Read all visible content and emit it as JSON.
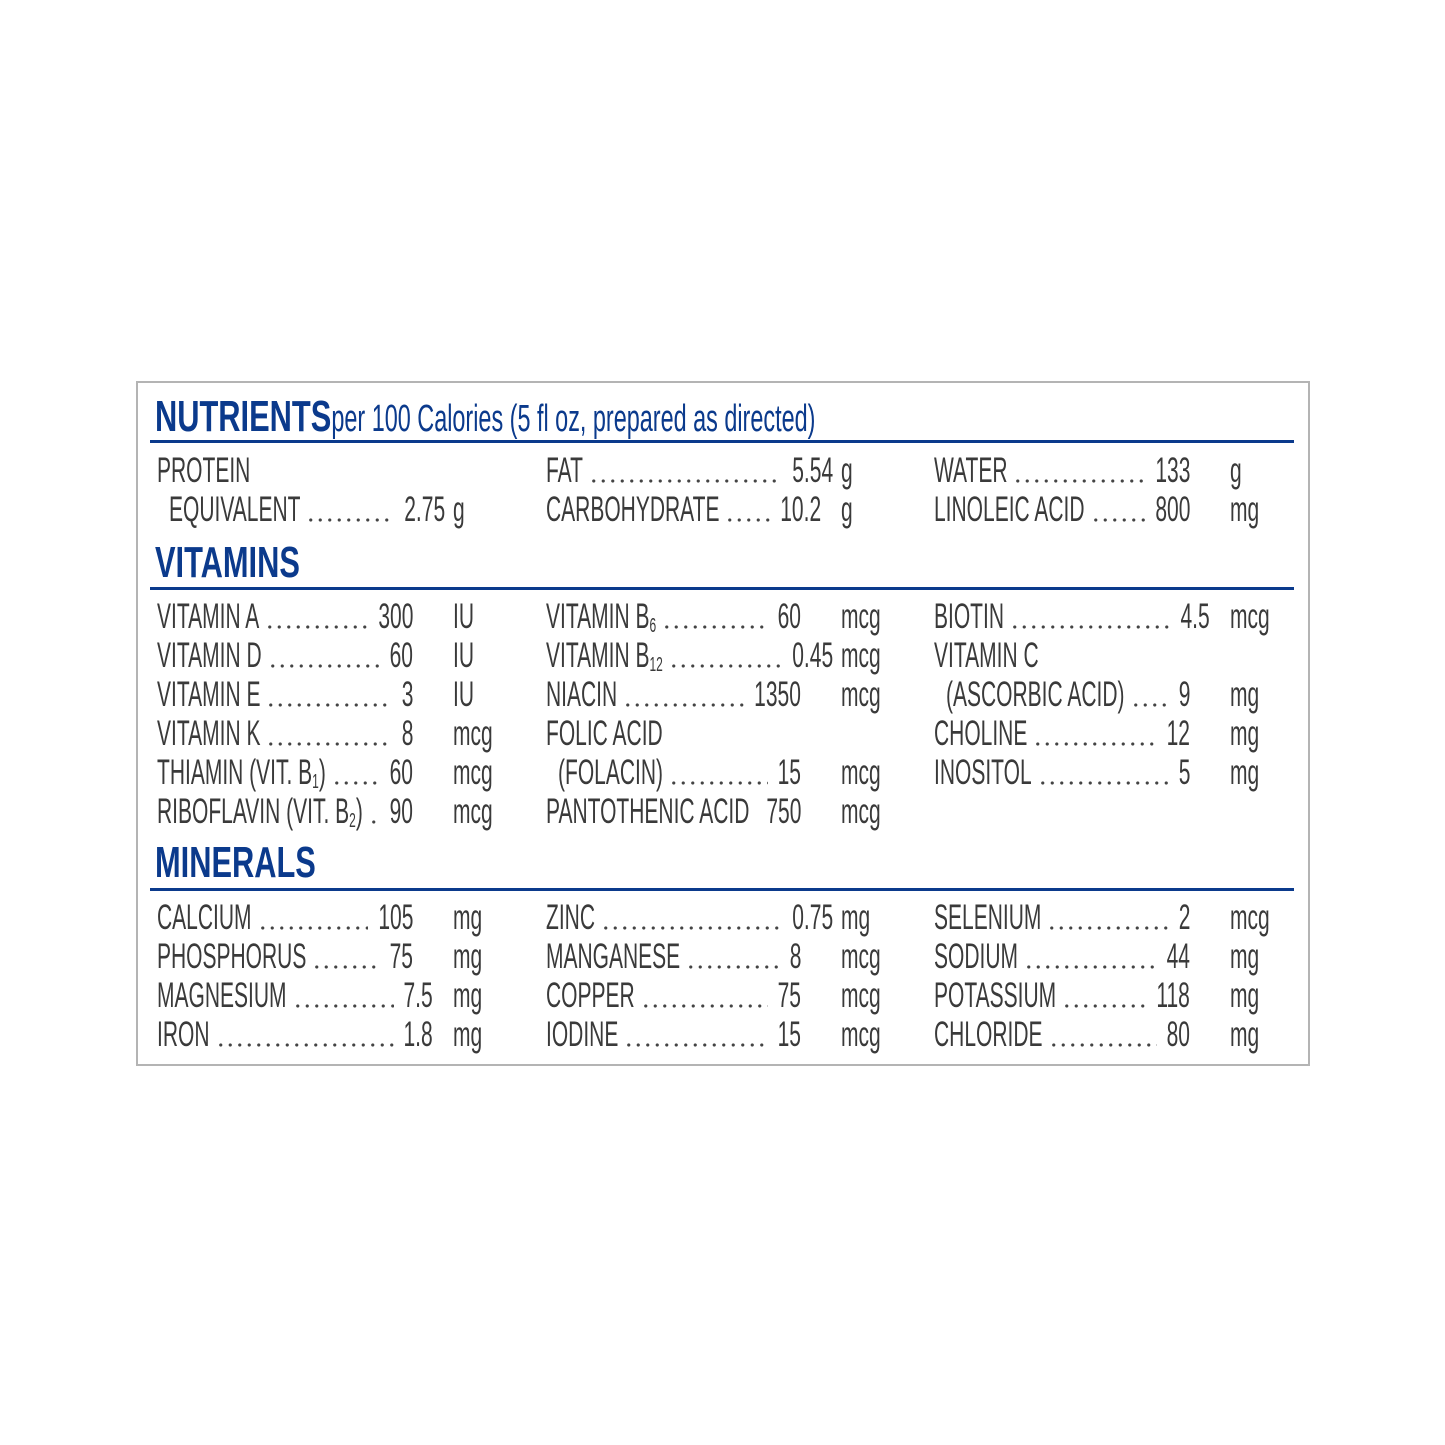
{
  "colors": {
    "accent": "#0b3a8c",
    "text": "#3a3a3a",
    "border": "#b4b4b4"
  },
  "title": {
    "main": "NUTRIENTS",
    "rest": " per 100 Calories (5 fl oz, prepared as directed)"
  },
  "sections": [
    {
      "key": "nutrients",
      "heading": "",
      "columns": [
        [
          {
            "label": "PROTEIN"
          },
          {
            "label": "EQUIVALENT",
            "indent": true,
            "value": "2.75",
            "unit": "g"
          }
        ],
        [
          {
            "label": "FAT",
            "value": "5.54",
            "unit": "g"
          },
          {
            "label": "CARBOHYDRATE",
            "value": "10.2",
            "unit": "g"
          }
        ],
        [
          {
            "label": "WATER",
            "value": "133",
            "unit": "g"
          },
          {
            "label": "LINOLEIC ACID",
            "value": "800",
            "unit": "mg"
          }
        ]
      ]
    },
    {
      "key": "vitamins",
      "heading": "VITAMINS",
      "columns": [
        [
          {
            "label": "VITAMIN A",
            "value": "300",
            "unit": "IU"
          },
          {
            "label": "VITAMIN D",
            "value": "60",
            "unit": "IU"
          },
          {
            "label": "VITAMIN E",
            "value": "3",
            "unit": "IU"
          },
          {
            "label": "VITAMIN K",
            "value": "8",
            "unit": "mcg"
          },
          {
            "label": "THIAMIN (VIT. B",
            "sub": "1",
            "suffix": ")",
            "value": "60",
            "unit": "mcg"
          },
          {
            "label": "RIBOFLAVIN (VIT. B",
            "sub": "2",
            "suffix": ")",
            "value": "90",
            "unit": "mcg"
          }
        ],
        [
          {
            "label": "VITAMIN B",
            "sub": "6",
            "value": "60",
            "unit": "mcg"
          },
          {
            "label": "VITAMIN B",
            "sub": "12",
            "value": "0.45",
            "unit": "mcg"
          },
          {
            "label": "NIACIN",
            "value": "1350",
            "unit": "mcg"
          },
          {
            "label": "FOLIC ACID"
          },
          {
            "label": "(FOLACIN)",
            "indent": true,
            "value": "15",
            "unit": "mcg"
          },
          {
            "label": "PANTOTHENIC ACID",
            "value": "750",
            "unit": "mcg"
          }
        ],
        [
          {
            "label": "BIOTIN",
            "value": "4.5",
            "unit": "mcg"
          },
          {
            "label": "VITAMIN C"
          },
          {
            "label": "(ASCORBIC ACID)",
            "indent": true,
            "value": "9",
            "unit": "mg"
          },
          {
            "label": "CHOLINE",
            "value": "12",
            "unit": "mg"
          },
          {
            "label": "INOSITOL",
            "value": "5",
            "unit": "mg"
          }
        ]
      ]
    },
    {
      "key": "minerals",
      "heading": "MINERALS",
      "columns": [
        [
          {
            "label": "CALCIUM",
            "value": "105",
            "unit": "mg"
          },
          {
            "label": "PHOSPHORUS",
            "value": "75",
            "unit": "mg"
          },
          {
            "label": "MAGNESIUM",
            "value": "7.5",
            "unit": "mg"
          },
          {
            "label": "IRON",
            "value": "1.8",
            "unit": "mg"
          }
        ],
        [
          {
            "label": "ZINC",
            "value": "0.75",
            "unit": "mg"
          },
          {
            "label": "MANGANESE",
            "value": "8",
            "unit": "mcg"
          },
          {
            "label": "COPPER",
            "value": "75",
            "unit": "mcg"
          },
          {
            "label": "IODINE",
            "value": "15",
            "unit": "mcg"
          }
        ],
        [
          {
            "label": "SELENIUM",
            "value": "2",
            "unit": "mcg"
          },
          {
            "label": "SODIUM",
            "value": "44",
            "unit": "mg"
          },
          {
            "label": "POTASSIUM",
            "value": "118",
            "unit": "mg"
          },
          {
            "label": "CHLORIDE",
            "value": "80",
            "unit": "mg"
          }
        ]
      ]
    }
  ]
}
